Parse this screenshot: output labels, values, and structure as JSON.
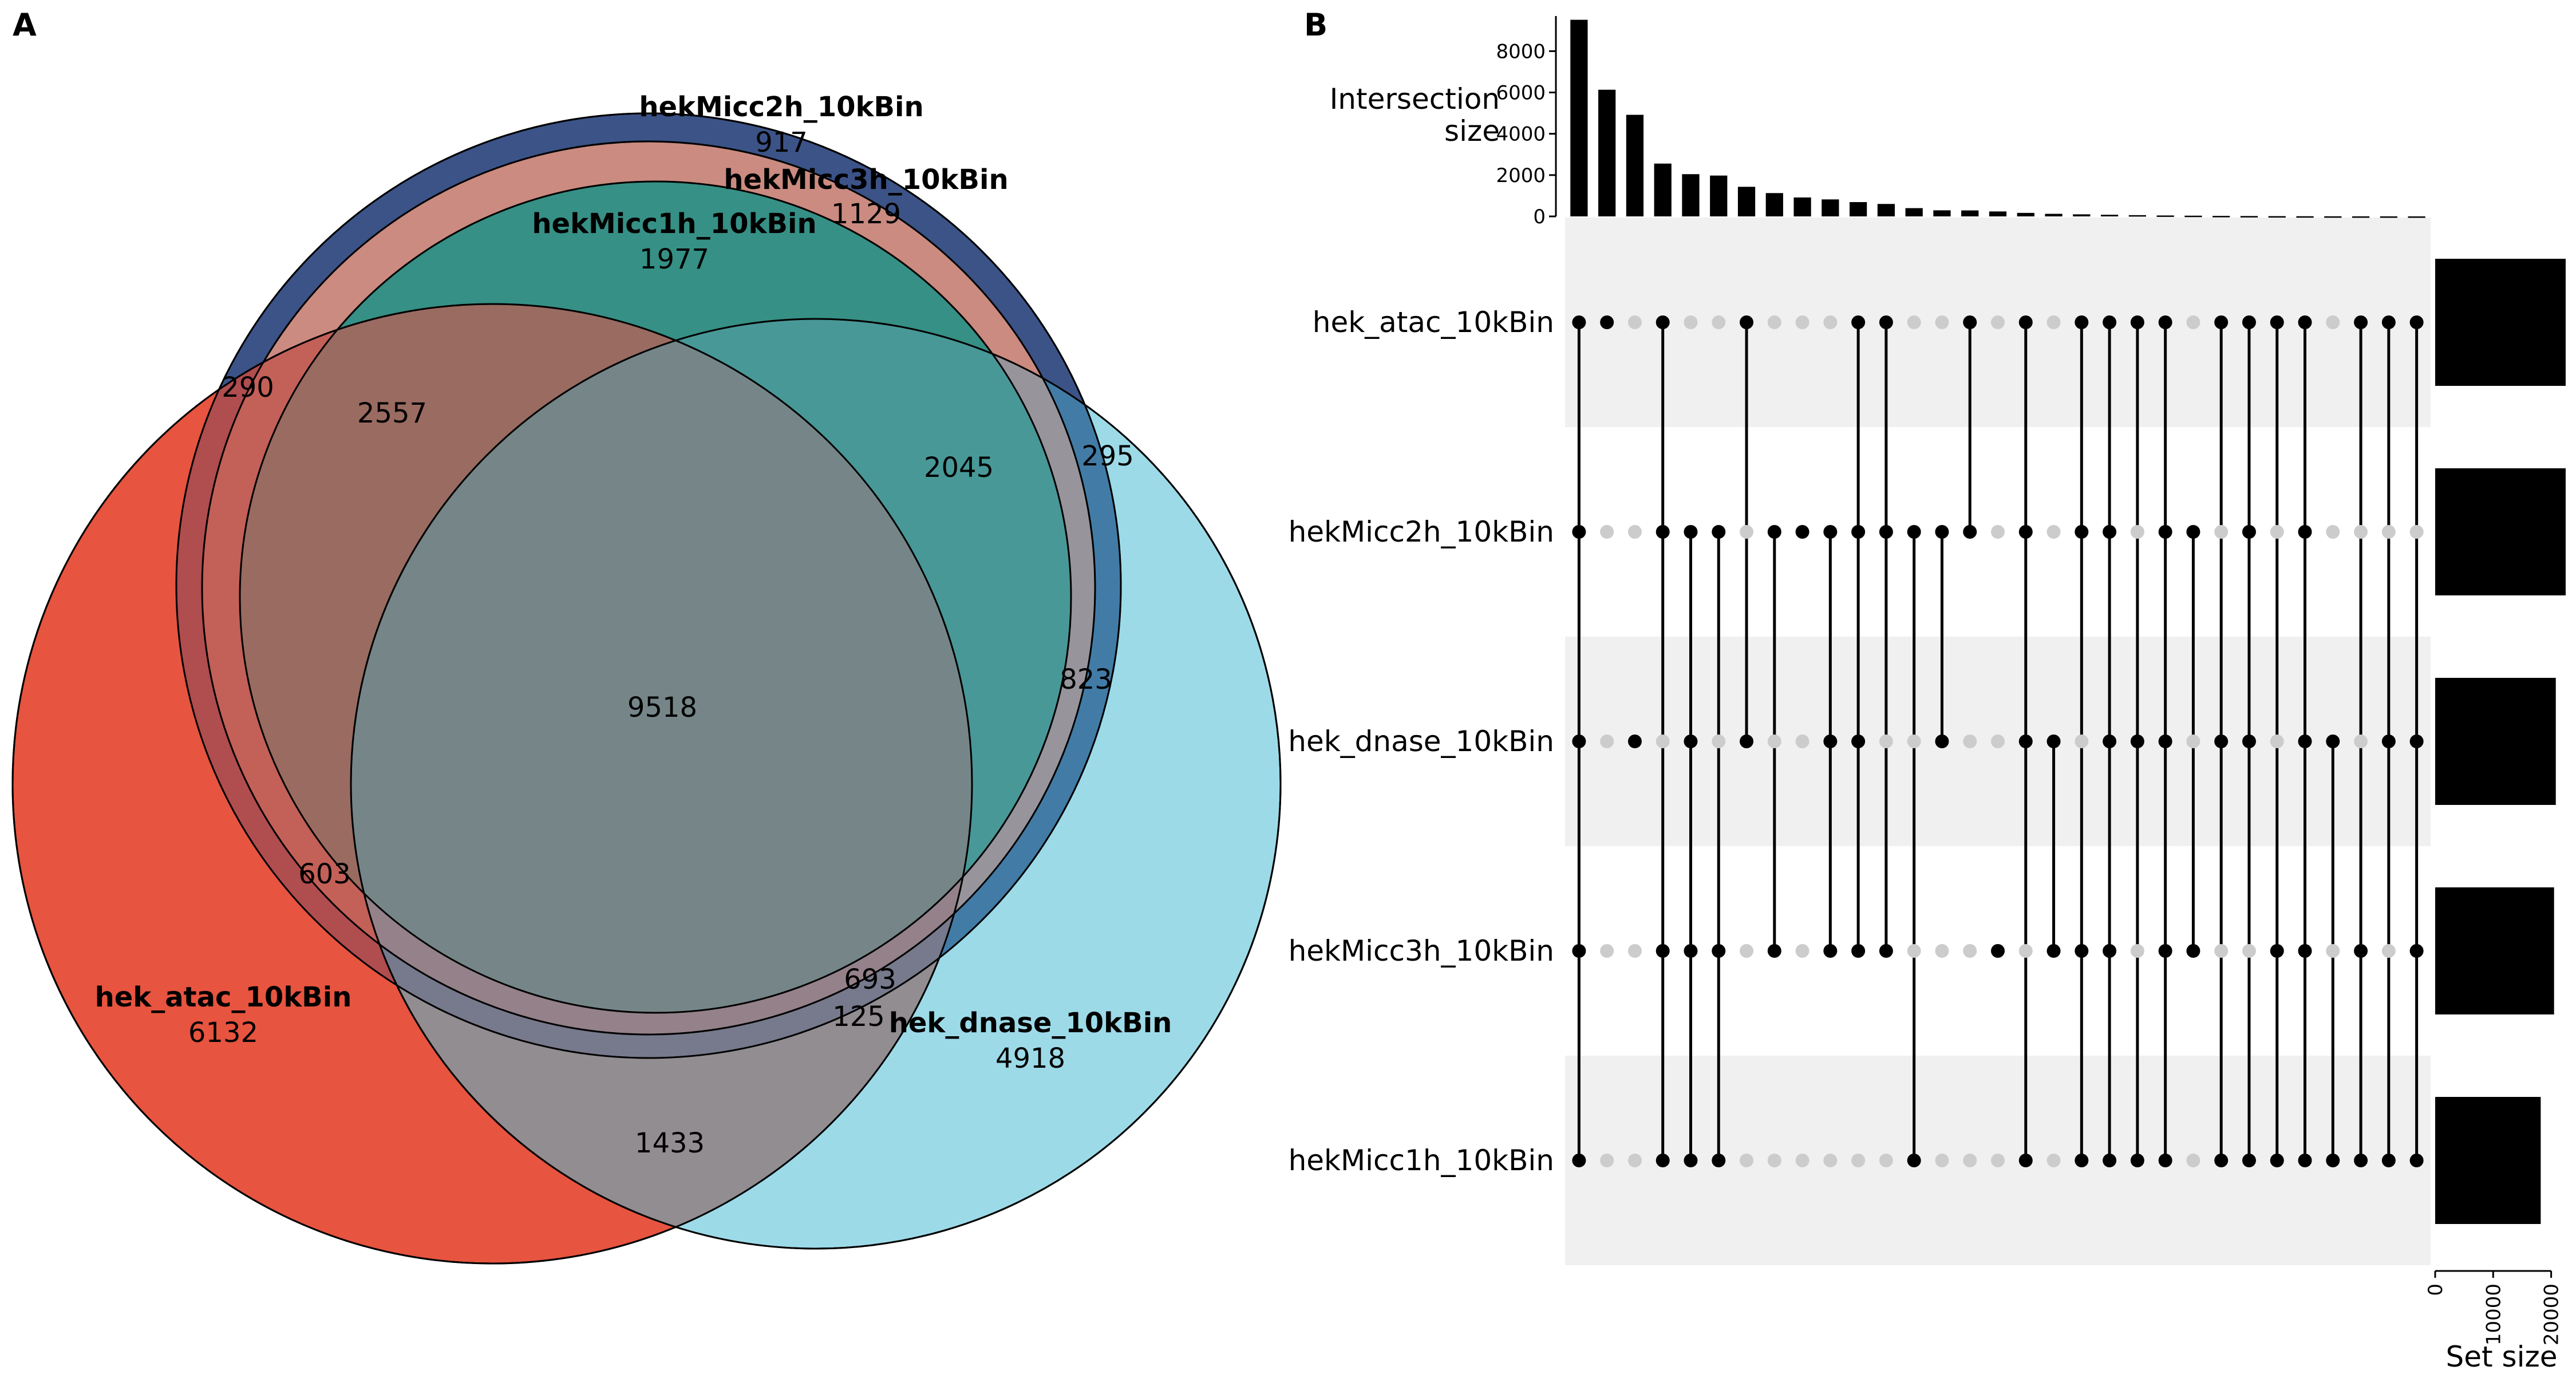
{
  "panel_labels": {
    "a": "A",
    "b": "B"
  },
  "chart_data": [
    {
      "type": "venn",
      "panel": "A",
      "sets": [
        {
          "name": "hekMicc2h_10kBin",
          "unique": "917",
          "color": "#3C5488"
        },
        {
          "name": "hekMicc3h_10kBin",
          "unique": "1129",
          "color": "#F39B7F"
        },
        {
          "name": "hekMicc1h_10kBin",
          "unique": "1977",
          "color": "#00A087"
        },
        {
          "name": "hek_atac_10kBin",
          "unique": "6132",
          "color": "#E64B35"
        },
        {
          "name": "hek_dnase_10kBin",
          "unique": "4918",
          "color": "#4DBBD5"
        }
      ],
      "region_values": [
        "290",
        "2557",
        "2045",
        "295",
        "823",
        "9518",
        "603",
        "693",
        "125",
        "1433"
      ]
    },
    {
      "type": "upset",
      "panel": "B",
      "title": "",
      "bar_ylabel": "Intersection\nsize",
      "bar_yticks": [
        0,
        2000,
        4000,
        6000,
        8000
      ],
      "bar_ylim": [
        0,
        9700
      ],
      "sets": [
        "hek_atac_10kBin",
        "hekMicc2h_10kBin",
        "hek_dnase_10kBin",
        "hekMicc3h_10kBin",
        "hekMicc1h_10kBin"
      ],
      "set_sizes": [
        22500,
        22500,
        20800,
        20500,
        18200
      ],
      "set_size_xlabel": "Set size",
      "set_size_ticks": [
        0,
        10000,
        20000
      ],
      "set_size_xlim": [
        0,
        23000
      ],
      "intersection_sizes": [
        9518,
        6132,
        4918,
        2557,
        2045,
        1977,
        1433,
        1129,
        917,
        823,
        693,
        603,
        400,
        295,
        290,
        240,
        170,
        125,
        100,
        80,
        60,
        45,
        35,
        25,
        18,
        12,
        8,
        5,
        3,
        2,
        1
      ],
      "membership": [
        [
          0,
          1,
          2,
          3,
          4
        ],
        [
          0
        ],
        [
          2
        ],
        [
          0,
          1,
          3,
          4
        ],
        [
          1,
          2,
          3,
          4
        ],
        [
          1,
          3,
          4
        ],
        [
          0,
          2
        ],
        [
          1,
          3
        ],
        [
          1
        ],
        [
          1,
          2,
          3
        ],
        [
          0,
          1,
          2,
          3
        ],
        [
          0,
          1,
          3
        ],
        [
          1,
          4
        ],
        [
          1,
          2
        ],
        [
          0,
          1
        ],
        [
          3
        ],
        [
          0,
          1,
          2,
          4
        ],
        [
          2,
          3
        ],
        [
          0,
          1,
          3,
          4
        ],
        [
          0,
          1,
          2,
          3,
          4
        ],
        [
          0,
          2,
          4
        ],
        [
          0,
          1,
          2,
          3,
          4
        ],
        [
          1,
          3
        ],
        [
          0,
          2,
          4
        ],
        [
          0,
          1,
          2,
          4
        ],
        [
          0,
          3,
          4
        ],
        [
          0,
          1,
          2,
          3,
          4
        ],
        [
          2,
          4
        ],
        [
          0,
          3,
          4
        ],
        [
          0,
          2,
          4
        ],
        [
          0,
          2,
          3,
          4
        ]
      ]
    }
  ]
}
